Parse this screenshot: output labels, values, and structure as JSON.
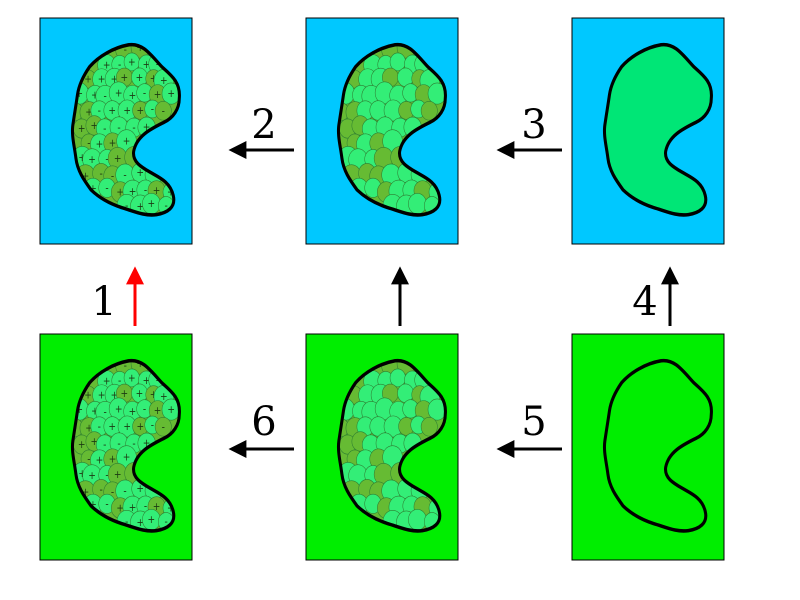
{
  "colors": {
    "water_background": "#00C8FF",
    "vacuum_background": "#00EE00",
    "solute_fill": "#00E676",
    "shell_dark": "#66BB33",
    "sphere_light": "#33EE77",
    "outline": "#000000",
    "arrow_default": "#000000",
    "arrow_highlight": "#FF0000"
  },
  "panels": [
    {
      "id": "top-left",
      "background": "water",
      "content": "charged-spheres"
    },
    {
      "id": "top-middle",
      "background": "water",
      "content": "neutral-spheres"
    },
    {
      "id": "top-right",
      "background": "water",
      "content": "solid-body"
    },
    {
      "id": "bottom-left",
      "background": "vacuum",
      "content": "charged-spheres"
    },
    {
      "id": "bottom-middle",
      "background": "vacuum",
      "content": "neutral-spheres"
    },
    {
      "id": "bottom-right",
      "background": "vacuum",
      "content": "empty-outline"
    }
  ],
  "steps": [
    {
      "label": "1",
      "highlight": true
    },
    {
      "label": "2",
      "highlight": false
    },
    {
      "label": "3",
      "highlight": false
    },
    {
      "label": "4",
      "highlight": false
    },
    {
      "label": "5",
      "highlight": false
    },
    {
      "label": "6",
      "highlight": false
    }
  ]
}
